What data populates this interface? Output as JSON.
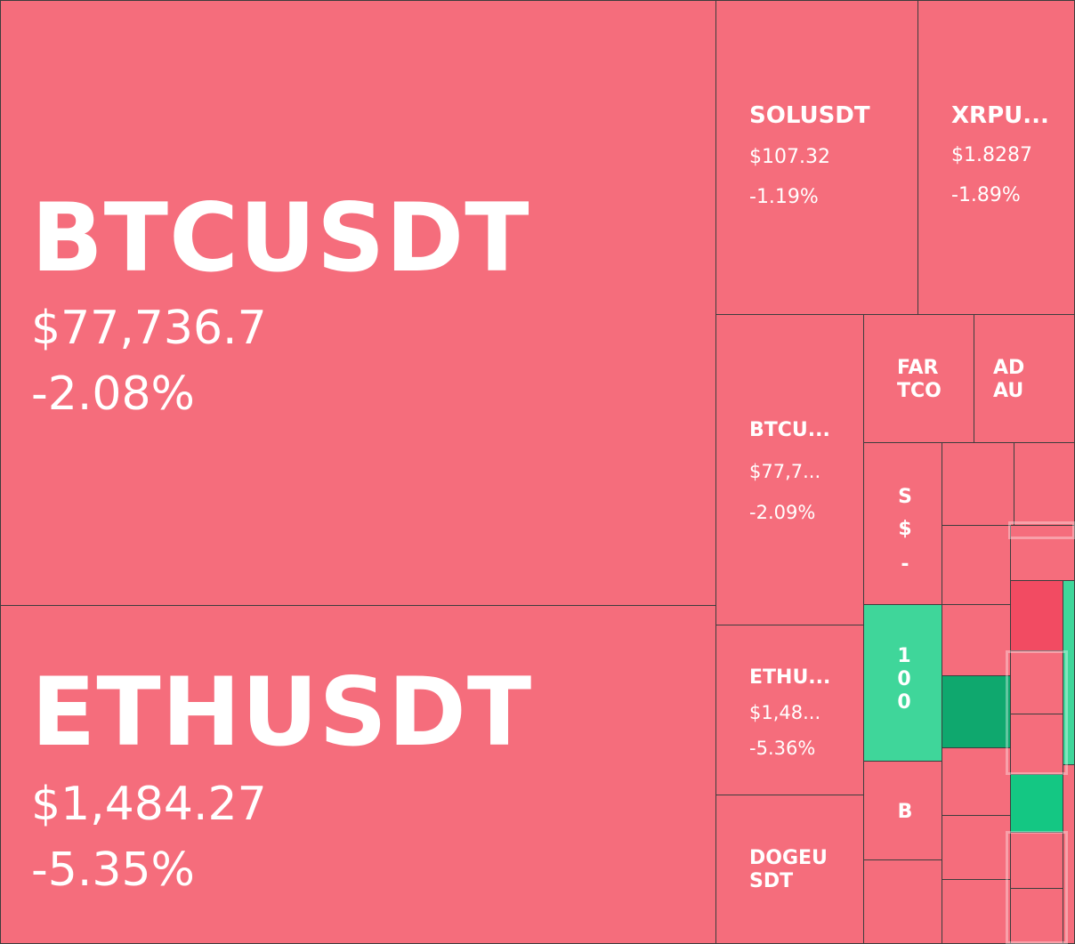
{
  "tiles": {
    "btc": {
      "symbol": "BTCUSDT",
      "price": "$77,736.7",
      "change": "-2.08%"
    },
    "eth": {
      "symbol": "ETHUSDT",
      "price": "$1,484.27",
      "change": "-5.35%"
    },
    "sol": {
      "symbol": "SOLUSDT",
      "price": "$107.32",
      "change": "-1.19%"
    },
    "xrp": {
      "symbol": "XRPU...",
      "price": "$1.8287",
      "change": "-1.89%"
    },
    "btc2": {
      "symbol": "BTCU...",
      "price": "$77,7...",
      "change": "-2.09%"
    },
    "eth2": {
      "symbol": "ETHU...",
      "price": "$1,48...",
      "change": "-5.36%"
    },
    "doge": {
      "symbol": "DOGEU\nSDT"
    },
    "fartco": {
      "symbol": "FAR\nTCO"
    },
    "adau": {
      "symbol": "AD\nAU"
    },
    "s_tile": {
      "symbol": "S",
      "price": "$",
      "change": "-"
    },
    "green_tall": {
      "symbol": "100"
    },
    "b_tile": {
      "symbol": "B"
    }
  },
  "colors": {
    "down": "#f56d7c",
    "strong_down": "#f24b62",
    "up": "#3fd69a",
    "strong_up": "#0fa86e",
    "border": "#3d3d3d"
  }
}
